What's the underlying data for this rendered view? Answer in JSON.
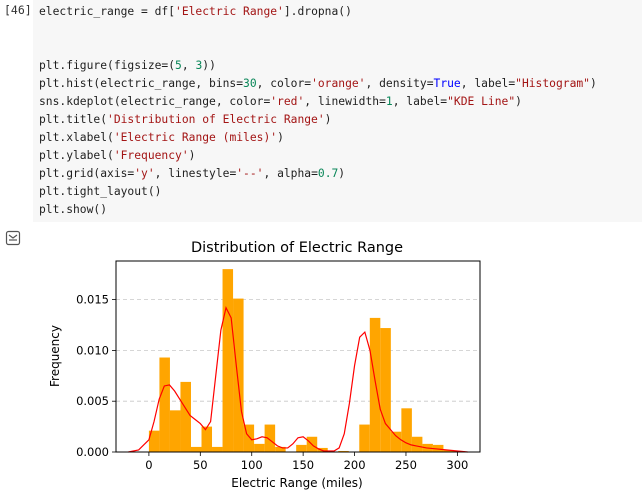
{
  "cell": {
    "prompt": "[46]",
    "lines": [
      [
        {
          "t": "electric_range = df["
        },
        {
          "t": "'Electric Range'",
          "c": "str"
        },
        {
          "t": "].dropna()"
        }
      ],
      [],
      [],
      [
        {
          "t": "plt.figure(figsize=("
        },
        {
          "t": "5",
          "c": "num"
        },
        {
          "t": ", "
        },
        {
          "t": "3",
          "c": "num"
        },
        {
          "t": "))"
        }
      ],
      [
        {
          "t": "plt.hist(electric_range, bins="
        },
        {
          "t": "30",
          "c": "num"
        },
        {
          "t": ", color="
        },
        {
          "t": "'orange'",
          "c": "str"
        },
        {
          "t": ", density="
        },
        {
          "t": "True",
          "c": "bool"
        },
        {
          "t": ", label="
        },
        {
          "t": "\"Histogram\"",
          "c": "str"
        },
        {
          "t": ")"
        }
      ],
      [
        {
          "t": "sns.kdeplot(electric_range, color="
        },
        {
          "t": "'red'",
          "c": "str"
        },
        {
          "t": ", linewidth="
        },
        {
          "t": "1",
          "c": "num"
        },
        {
          "t": ", label="
        },
        {
          "t": "\"KDE Line\"",
          "c": "str"
        },
        {
          "t": ")"
        }
      ],
      [
        {
          "t": "plt.title("
        },
        {
          "t": "'Distribution of Electric Range'",
          "c": "str"
        },
        {
          "t": ")"
        }
      ],
      [
        {
          "t": "plt.xlabel("
        },
        {
          "t": "'Electric Range (miles)'",
          "c": "str"
        },
        {
          "t": ")"
        }
      ],
      [
        {
          "t": "plt.ylabel("
        },
        {
          "t": "'Frequency'",
          "c": "str"
        },
        {
          "t": ")"
        }
      ],
      [
        {
          "t": "plt.grid(axis="
        },
        {
          "t": "'y'",
          "c": "str"
        },
        {
          "t": ", linestyle="
        },
        {
          "t": "'--'",
          "c": "str"
        },
        {
          "t": ", alpha="
        },
        {
          "t": "0.7",
          "c": "num"
        },
        {
          "t": ")"
        }
      ],
      [
        {
          "t": "plt.tight_layout()"
        }
      ],
      [
        {
          "t": "plt.show()"
        }
      ]
    ]
  },
  "output": {
    "icon": "output-toggle-icon"
  },
  "colors": {
    "hist": "#ffa500",
    "kde": "#ff0000",
    "grid": "#c8c8c8"
  },
  "chart_data": {
    "type": "bar",
    "title": "Distribution of Electric Range",
    "xlabel": "Electric Range (miles)",
    "ylabel": "Frequency",
    "xlim": [
      -32,
      322
    ],
    "ylim": [
      0,
      0.0188
    ],
    "xticks": [
      0,
      50,
      100,
      150,
      200,
      250,
      300
    ],
    "yticks": [
      0.0,
      0.005,
      0.01,
      0.015
    ],
    "ytick_labels": [
      "0.000",
      "0.005",
      "0.010",
      "0.015"
    ],
    "grid": {
      "axis": "y",
      "linestyle": "dashed"
    },
    "histogram": {
      "bin_start": 0,
      "bin_width": 10.23,
      "densities": [
        0.0021,
        0.0093,
        0.0041,
        0.0069,
        0.0005,
        0.0025,
        0.0005,
        0.018,
        0.0151,
        0.0027,
        0.0008,
        0.0027,
        0.0005,
        0.0,
        0.0007,
        0.0015,
        0.0004,
        0.0,
        0.0001,
        0.0,
        0.0027,
        0.0132,
        0.0122,
        0.002,
        0.0043,
        0.0015,
        0.0008,
        0.0007,
        0.0002,
        0.0001
      ]
    },
    "kde": {
      "x": [
        -20,
        -10,
        0,
        5,
        10,
        15,
        20,
        25,
        30,
        35,
        40,
        45,
        50,
        55,
        60,
        65,
        70,
        75,
        80,
        85,
        90,
        95,
        100,
        105,
        110,
        115,
        120,
        125,
        130,
        135,
        140,
        145,
        150,
        155,
        160,
        165,
        170,
        175,
        180,
        185,
        190,
        195,
        200,
        205,
        210,
        215,
        220,
        225,
        230,
        235,
        240,
        245,
        250,
        255,
        260,
        270,
        280,
        290,
        300,
        310
      ],
      "y": [
        0.0,
        0.0002,
        0.0012,
        0.003,
        0.0052,
        0.0065,
        0.0066,
        0.006,
        0.0052,
        0.0044,
        0.0036,
        0.0032,
        0.0028,
        0.0022,
        0.003,
        0.0075,
        0.012,
        0.0142,
        0.0132,
        0.0085,
        0.004,
        0.0018,
        0.0012,
        0.0013,
        0.0015,
        0.0014,
        0.001,
        0.0006,
        0.0004,
        0.0004,
        0.0008,
        0.0014,
        0.0015,
        0.0011,
        0.0006,
        0.0003,
        0.0001,
        0.0001,
        0.0001,
        0.0004,
        0.0018,
        0.0048,
        0.0085,
        0.0113,
        0.0118,
        0.01,
        0.007,
        0.0042,
        0.0028,
        0.0022,
        0.0016,
        0.0012,
        0.0009,
        0.0007,
        0.0006,
        0.0004,
        0.0003,
        0.0002,
        0.0001,
        0.0
      ]
    }
  }
}
